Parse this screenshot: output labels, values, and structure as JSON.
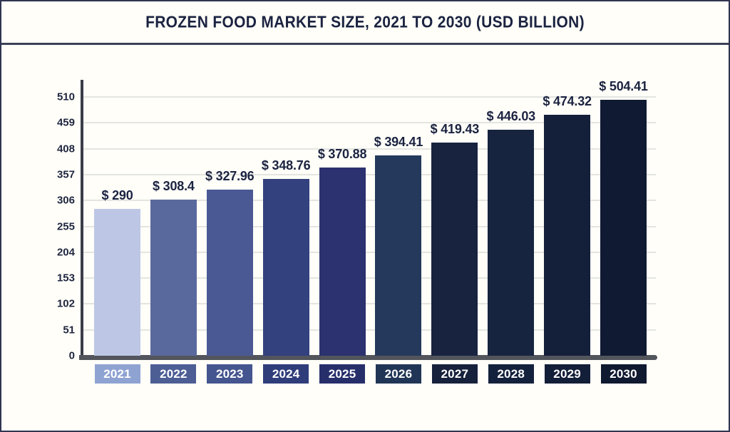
{
  "frame": {
    "background": "#fffef8",
    "border_color": "#2f3550"
  },
  "header": {
    "title": "FROZEN FOOD MARKET SIZE, 2021 TO 2030 (USD BILLION)",
    "title_color": "#1b2341",
    "rule_color": "#3c4158"
  },
  "chart_data": {
    "type": "bar",
    "title": "FROZEN FOOD MARKET SIZE, 2021 TO 2030 (USD BILLION)",
    "unit": "USD Billion",
    "categories": [
      "2021",
      "2022",
      "2023",
      "2024",
      "2025",
      "2026",
      "2027",
      "2028",
      "2029",
      "2030"
    ],
    "values": [
      290,
      308.4,
      327.96,
      348.76,
      370.88,
      394.41,
      419.43,
      446.03,
      474.32,
      504.41
    ],
    "value_labels": [
      "$ 290",
      "$ 308.4",
      "$ 327.96",
      "$ 348.76",
      "$ 370.88",
      "$ 394.41",
      "$ 419.43",
      "$ 446.03",
      "$ 474.32",
      "$ 504.41"
    ],
    "y_ticks": [
      0,
      51,
      102,
      153,
      204,
      255,
      306,
      357,
      408,
      459,
      510
    ],
    "ylim": [
      0,
      510
    ],
    "xlabel": "",
    "ylabel": "",
    "grid": "horizontal",
    "legend_position": "none",
    "bar_colors": [
      "#bdc7e5",
      "#5a699d",
      "#4a5994",
      "#33417f",
      "#2b326f",
      "#24395c",
      "#17233f",
      "#16243f",
      "#141f3a",
      "#101a32"
    ],
    "category_box_colors": [
      "#8fa3d2",
      "#4d5e95",
      "#45558f",
      "#2f3d7a",
      "#272f6b",
      "#213656",
      "#16213c",
      "#14213c",
      "#131e38",
      "#0f1930"
    ],
    "axis_color": "#53555d",
    "gridline_color": "#e4e4e2",
    "tick_label_color": "#1f2640",
    "value_label_color": "#1b2341"
  }
}
